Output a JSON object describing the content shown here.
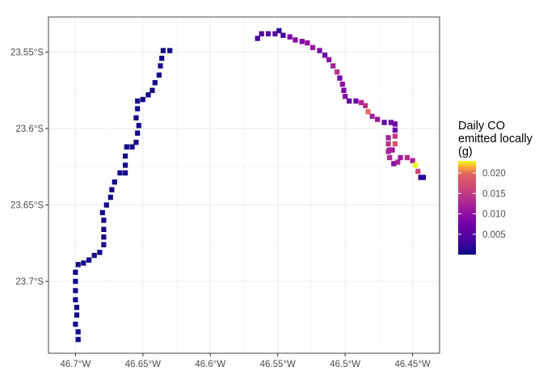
{
  "chart_data": {
    "type": "heatmap",
    "title": "",
    "xlabel": "",
    "ylabel": "",
    "xlim": [
      -46.72,
      -46.43
    ],
    "ylim": [
      -23.747,
      -23.527
    ],
    "grid": true,
    "legend_position": "right",
    "x_ticks": [
      {
        "value": -46.7,
        "label": "46.7°W"
      },
      {
        "value": -46.65,
        "label": "46.65°W"
      },
      {
        "value": -46.6,
        "label": "46.6°W"
      },
      {
        "value": -46.55,
        "label": "46.55°W"
      },
      {
        "value": -46.5,
        "label": "46.5°W"
      },
      {
        "value": -46.45,
        "label": "46.45°W"
      }
    ],
    "y_ticks": [
      {
        "value": -23.55,
        "label": "23.55°S"
      },
      {
        "value": -23.6,
        "label": "23.6°S"
      },
      {
        "value": -23.65,
        "label": "23.65°S"
      },
      {
        "value": -23.7,
        "label": "23.7°S"
      }
    ],
    "colorbar": {
      "title": [
        "Daily CO",
        "emitted locally",
        "(g)"
      ],
      "range": [
        0.0,
        0.023
      ],
      "ticks": [
        {
          "value": 0.005,
          "label": "0.005"
        },
        {
          "value": 0.01,
          "label": "0.010"
        },
        {
          "value": 0.015,
          "label": "0.015"
        },
        {
          "value": 0.02,
          "label": "0.020"
        }
      ],
      "colormap": "plasma"
    },
    "series": [
      {
        "points": [
          [
            -46.698,
            -23.738,
            0.0004
          ],
          [
            -46.698,
            -23.733,
            0.0004
          ],
          [
            -46.7,
            -23.728,
            0.0004
          ],
          [
            -46.699,
            -23.722,
            0.0004
          ],
          [
            -46.699,
            -23.717,
            0.0004
          ],
          [
            -46.7,
            -23.712,
            0.0004
          ],
          [
            -46.7,
            -23.706,
            0.0004
          ],
          [
            -46.7,
            -23.7,
            0.0004
          ],
          [
            -46.7,
            -23.694,
            0.0004
          ],
          [
            -46.698,
            -23.689,
            0.0004
          ],
          [
            -46.694,
            -23.688,
            0.0004
          ],
          [
            -46.69,
            -23.686,
            0.0004
          ],
          [
            -46.686,
            -23.683,
            0.0004
          ],
          [
            -46.682,
            -23.681,
            0.0004
          ],
          [
            -46.679,
            -23.676,
            0.0004
          ],
          [
            -46.679,
            -23.671,
            0.0004
          ],
          [
            -46.679,
            -23.666,
            0.0004
          ],
          [
            -46.679,
            -23.66,
            0.0004
          ],
          [
            -46.68,
            -23.655,
            0.0004
          ],
          [
            -46.677,
            -23.65,
            0.0004
          ],
          [
            -46.674,
            -23.645,
            0.0004
          ],
          [
            -46.673,
            -23.64,
            0.0004
          ],
          [
            -46.671,
            -23.635,
            0.0004
          ],
          [
            -46.667,
            -23.629,
            0.0004
          ],
          [
            -46.663,
            -23.629,
            0.0004
          ],
          [
            -46.663,
            -23.624,
            0.0004
          ],
          [
            -46.663,
            -23.618,
            0.0004
          ],
          [
            -46.662,
            -23.612,
            0.0004
          ],
          [
            -46.658,
            -23.612,
            0.0004
          ],
          [
            -46.655,
            -23.609,
            0.0004
          ],
          [
            -46.654,
            -23.603,
            0.0004
          ],
          [
            -46.653,
            -23.598,
            0.0004
          ],
          [
            -46.655,
            -23.593,
            0.0004
          ],
          [
            -46.654,
            -23.587,
            0.0004
          ],
          [
            -46.654,
            -23.582,
            0.0004
          ],
          [
            -46.65,
            -23.581,
            0.0004
          ],
          [
            -46.646,
            -23.578,
            0.0004
          ],
          [
            -46.643,
            -23.575,
            0.0004
          ],
          [
            -46.641,
            -23.57,
            0.0004
          ],
          [
            -46.638,
            -23.565,
            0.0004
          ],
          [
            -46.637,
            -23.559,
            0.0004
          ],
          [
            -46.636,
            -23.554,
            0.0004
          ],
          [
            -46.635,
            -23.549,
            0.0004
          ],
          [
            -46.63,
            -23.549,
            0.0004
          ],
          [
            -46.565,
            -23.541,
            0.0035
          ],
          [
            -46.562,
            -23.538,
            0.0045
          ],
          [
            -46.557,
            -23.538,
            0.005
          ],
          [
            -46.552,
            -23.538,
            0.005
          ],
          [
            -46.549,
            -23.536,
            0.002
          ],
          [
            -46.546,
            -23.539,
            0.003
          ],
          [
            -46.541,
            -23.54,
            0.008
          ],
          [
            -46.537,
            -23.542,
            0.0095
          ],
          [
            -46.532,
            -23.543,
            0.009
          ],
          [
            -46.528,
            -23.544,
            0.01
          ],
          [
            -46.524,
            -23.547,
            0.011
          ],
          [
            -46.519,
            -23.549,
            0.008
          ],
          [
            -46.515,
            -23.552,
            0.007
          ],
          [
            -46.512,
            -23.555,
            0.01
          ],
          [
            -46.509,
            -23.559,
            0.012
          ],
          [
            -46.506,
            -23.563,
            0.014
          ],
          [
            -46.504,
            -23.567,
            0.007
          ],
          [
            -46.502,
            -23.571,
            0.01
          ],
          [
            -46.501,
            -23.575,
            0.008
          ],
          [
            -46.5,
            -23.579,
            0.009
          ],
          [
            -46.497,
            -23.582,
            0.006
          ],
          [
            -46.492,
            -23.582,
            0.007
          ],
          [
            -46.488,
            -23.583,
            0.013
          ],
          [
            -46.485,
            -23.585,
            0.014
          ],
          [
            -46.483,
            -23.589,
            0.02
          ],
          [
            -46.48,
            -23.592,
            0.012
          ],
          [
            -46.476,
            -23.594,
            0.011
          ],
          [
            -46.471,
            -23.596,
            0.006
          ],
          [
            -46.466,
            -23.596,
            0.008
          ],
          [
            -46.463,
            -23.597,
            0.007
          ],
          [
            -46.463,
            -23.601,
            0.006
          ],
          [
            -46.463,
            -23.605,
            0.015
          ],
          [
            -46.463,
            -23.61,
            0.018
          ],
          [
            -46.465,
            -23.614,
            0.011
          ],
          [
            -46.467,
            -23.614,
            0.012
          ],
          [
            -46.468,
            -23.61,
            0.014
          ],
          [
            -46.468,
            -23.606,
            0.012
          ],
          [
            -46.468,
            -23.615,
            0.012
          ],
          [
            -46.467,
            -23.619,
            0.013
          ],
          [
            -46.464,
            -23.623,
            0.009
          ],
          [
            -46.461,
            -23.622,
            0.012
          ],
          [
            -46.459,
            -23.619,
            0.011
          ],
          [
            -46.454,
            -23.619,
            0.013
          ],
          [
            -46.45,
            -23.621,
            0.012
          ],
          [
            -46.448,
            -23.624,
            0.023
          ],
          [
            -46.446,
            -23.628,
            0.016
          ],
          [
            -46.444,
            -23.632,
            0.002
          ],
          [
            -46.442,
            -23.632,
            0.002
          ]
        ]
      }
    ]
  }
}
